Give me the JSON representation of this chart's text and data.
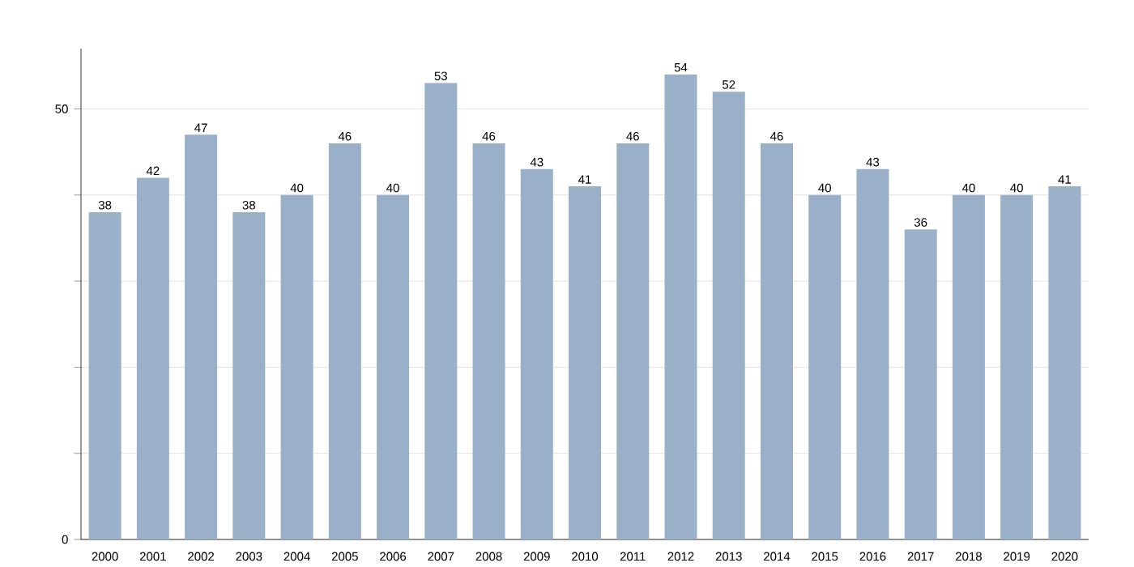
{
  "chart_data": {
    "type": "bar",
    "categories": [
      "2000",
      "2001",
      "2002",
      "2003",
      "2004",
      "2005",
      "2006",
      "2007",
      "2008",
      "2009",
      "2010",
      "2011",
      "2012",
      "2013",
      "2014",
      "2015",
      "2016",
      "2017",
      "2018",
      "2019",
      "2020"
    ],
    "values": [
      38,
      42,
      47,
      38,
      40,
      46,
      40,
      53,
      46,
      43,
      41,
      46,
      54,
      52,
      46,
      40,
      43,
      36,
      40,
      40,
      41
    ],
    "color": "#9ab0c9",
    "ylim": [
      0,
      57
    ],
    "yticks": [
      0,
      {
        "value": 10,
        "label": null
      },
      {
        "value": 20,
        "label": null
      },
      {
        "value": 30,
        "label": null
      },
      {
        "value": 40,
        "label": null
      },
      50
    ],
    "grid": "y",
    "data_labels": true
  }
}
